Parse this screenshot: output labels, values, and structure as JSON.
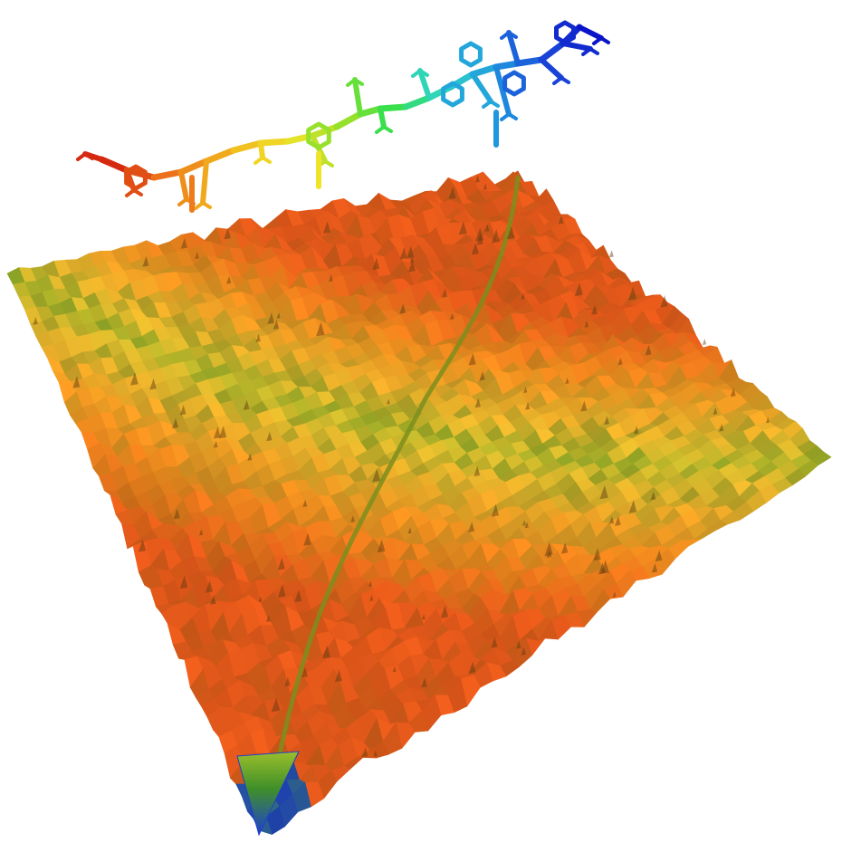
{
  "figure": {
    "background_color": "#ffffff",
    "subjects": [
      "energy-landscape-surface",
      "molecule-ball-and-stick"
    ],
    "surface": {
      "palette": [
        "#1e3fcf",
        "#3f8f2a",
        "#9bbf2b",
        "#e7b52c",
        "#f08a1e",
        "#e2581a"
      ],
      "valley_color": "#7d8e1d",
      "funnel_tip_color": "#1e3fcf"
    },
    "molecule": {
      "gradient": [
        "#d62a10",
        "#ee7a1a",
        "#f1b51d",
        "#f0e32a",
        "#9ce02a",
        "#34e04e",
        "#2fd3c9",
        "#1f97e0",
        "#1b47d8",
        "#0a14c8"
      ]
    }
  }
}
